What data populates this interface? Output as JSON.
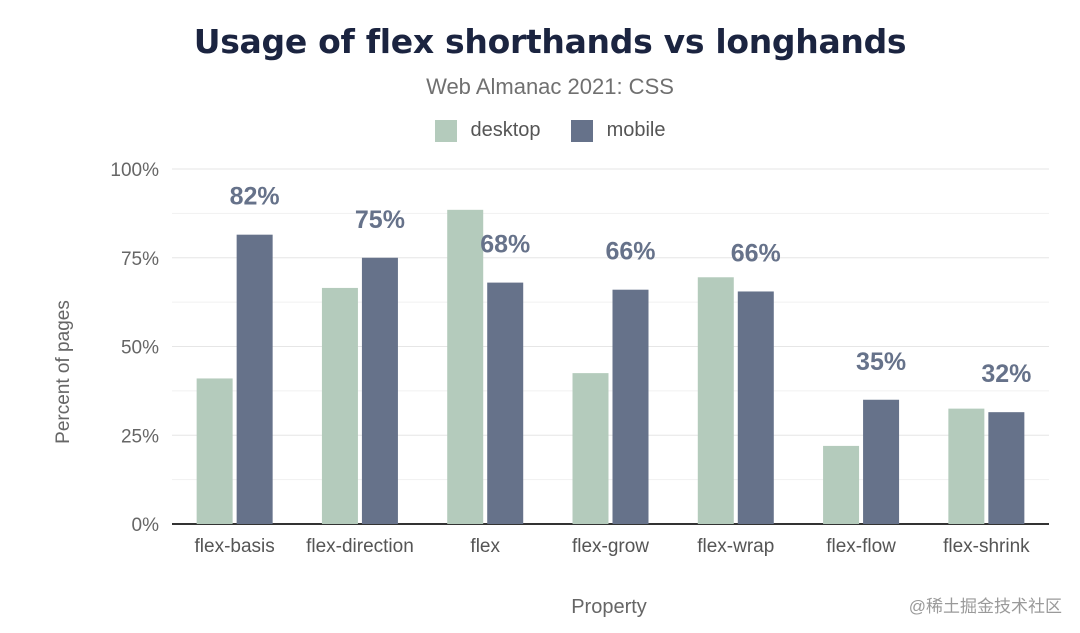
{
  "chart_data": {
    "type": "bar",
    "title": "Usage of flex shorthands vs longhands",
    "subtitle": "Web Almanac 2021: CSS",
    "xlabel": "Property",
    "ylabel": "Percent of pages",
    "ylim": [
      0,
      100
    ],
    "yticks": [
      "0%",
      "25%",
      "50%",
      "75%",
      "100%"
    ],
    "grid": true,
    "legend_position": "top",
    "categories": [
      "flex-basis",
      "flex-direction",
      "flex",
      "flex-grow",
      "flex-wrap",
      "flex-flow",
      "flex-shrink"
    ],
    "series": [
      {
        "name": "desktop",
        "color": "#b4cbbc",
        "values": [
          41,
          66.5,
          88.5,
          42.5,
          69.5,
          22,
          32.5
        ]
      },
      {
        "name": "mobile",
        "color": "#66728a",
        "values": [
          81.5,
          75,
          68,
          66,
          65.5,
          35,
          31.5
        ]
      }
    ],
    "data_labels": [
      "82%",
      "75%",
      "68%",
      "66%",
      "66%",
      "35%",
      "32%"
    ]
  },
  "watermark": "@稀土掘金技术社区"
}
